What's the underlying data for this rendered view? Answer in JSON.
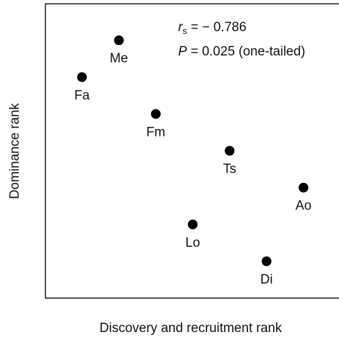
{
  "chart_data": {
    "type": "scatter",
    "x_label": "Discovery and recruitment rank",
    "y_label": "Dominance rank",
    "annotations": [
      {
        "symbol": "r",
        "subscript": "s",
        "text": " = − 0.786"
      },
      {
        "symbol": "P",
        "text": " = 0.025 (one-tailed)"
      }
    ],
    "labels": [
      "Fa",
      "Me",
      "Fm",
      "Lo",
      "Ts",
      "Di",
      "Ao"
    ],
    "x": [
      1,
      2,
      3,
      4,
      5,
      6,
      7
    ],
    "y": [
      6,
      7,
      5,
      2,
      4,
      1,
      3
    ],
    "color": "#000000",
    "xlim": [
      0,
      8
    ],
    "ylim": [
      0,
      8
    ]
  }
}
